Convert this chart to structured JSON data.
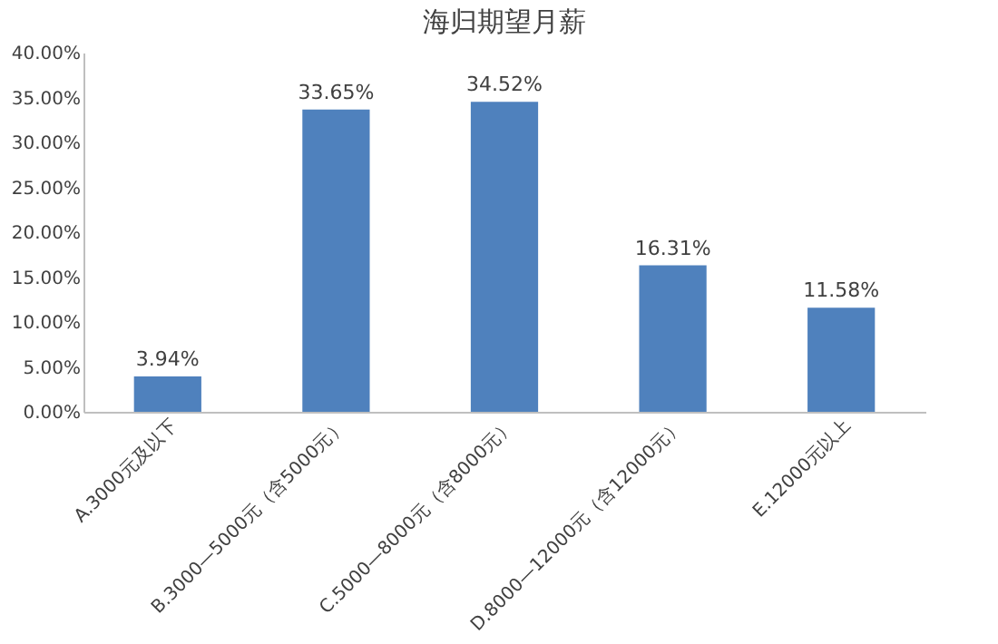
{
  "chart_data": {
    "type": "bar",
    "title": "海归期望月薪",
    "categories": [
      "A.3000元及以下",
      "B.3000—5000元（含5000元）",
      "C.5000—8000元（含8000元）",
      "D.8000—12000元（含12000元）",
      "E.12000元以上"
    ],
    "values": [
      3.94,
      33.65,
      34.52,
      16.31,
      11.58
    ],
    "value_labels": [
      "3.94%",
      "33.65%",
      "34.52%",
      "16.31%",
      "11.58%"
    ],
    "color": "#4f81bd",
    "ylim": [
      0,
      40
    ],
    "yticks": [
      {
        "value": 0,
        "label": "0.00%"
      },
      {
        "value": 5,
        "label": "5.00%"
      },
      {
        "value": 10,
        "label": "10.00%"
      },
      {
        "value": 15,
        "label": "15.00%"
      },
      {
        "value": 20,
        "label": "20.00%"
      },
      {
        "value": 25,
        "label": "25.00%"
      },
      {
        "value": 30,
        "label": "30.00%"
      },
      {
        "value": 35,
        "label": "35.00%"
      },
      {
        "value": 40,
        "label": "40.00%"
      }
    ],
    "grid": false
  }
}
